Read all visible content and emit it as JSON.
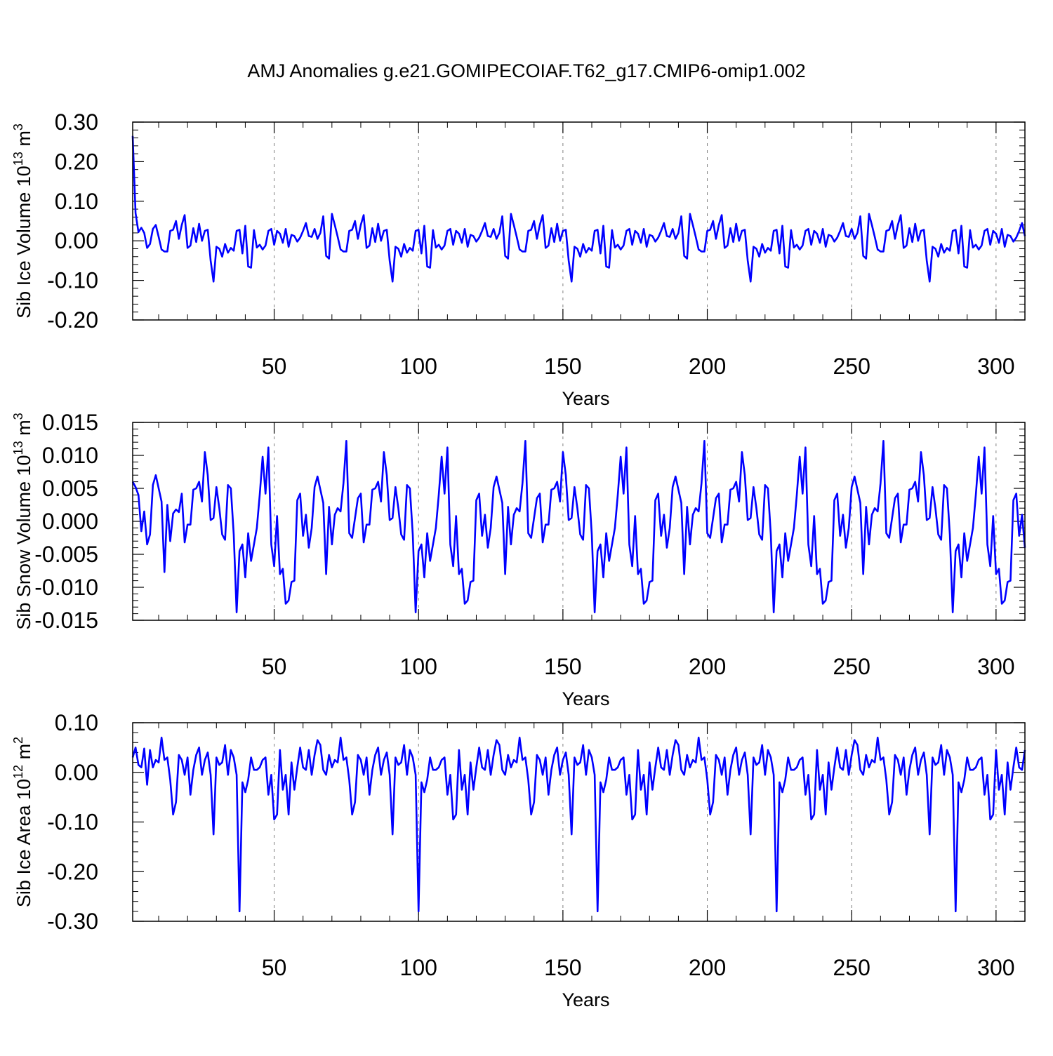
{
  "title": "AMJ Anomalies g.e21.GOMIPECOIAF.T62_g17.CMIP6-omip1.002",
  "line_color": "#0000ff",
  "chart_data": [
    {
      "type": "line",
      "id": "ice-volume",
      "ylabel_main": "Sib Ice Volume 10",
      "ylabel_sup": "13",
      "ylabel_unit": " m",
      "ylabel_unit_sup": "3",
      "xlabel": "Years",
      "xlim": [
        1,
        310
      ],
      "ylim": [
        -0.2,
        0.3
      ],
      "yticks": [
        -0.2,
        -0.1,
        0.0,
        0.1,
        0.2,
        0.3
      ],
      "ytick_labels": [
        "-0.20",
        "-0.10",
        "0.00",
        "0.10",
        "0.20",
        "0.30"
      ],
      "yminor_step": 0.02,
      "xticks": [
        50,
        100,
        150,
        200,
        250,
        300
      ],
      "xtick_labels": [
        "50",
        "100",
        "150",
        "200",
        "250",
        "300"
      ],
      "xminor_step": 10,
      "grid_x": true,
      "period": 62,
      "base_cycle": [
        0.027,
        -0.017,
        -0.01,
        -0.022,
        -0.012,
        0.025,
        0.03,
        -0.01,
        0.025,
        0.018,
        -0.005,
        0.03,
        -0.015,
        0.015,
        0.012,
        -0.002,
        0.008,
        0.025,
        0.045,
        0.012,
        0.01,
        0.03,
        0.005,
        0.02,
        0.062,
        -0.038,
        -0.045,
        0.068,
        0.04,
        0.01,
        -0.022,
        -0.027,
        -0.027,
        0.025,
        0.028,
        0.05,
        0.005,
        0.04,
        0.065,
        -0.018,
        -0.012,
        0.032,
        -0.003,
        0.043,
        0.0,
        0.025,
        0.028,
        -0.05,
        -0.103,
        -0.015,
        -0.02,
        -0.04,
        -0.008,
        -0.03,
        -0.018,
        -0.025,
        0.025,
        0.028,
        -0.032,
        0.038,
        -0.065,
        -0.068
      ],
      "first_values": [
        0.265,
        0.07,
        0.022,
        0.033,
        0.02,
        -0.018,
        -0.008,
        0.03
      ],
      "series": [
        {
          "name": "AMJ anomaly"
        }
      ]
    },
    {
      "type": "line",
      "id": "snow-volume",
      "ylabel_main": "Sib Snow Volume 10",
      "ylabel_sup": "13",
      "ylabel_unit": " m",
      "ylabel_unit_sup": "3",
      "xlabel": "Years",
      "xlim": [
        1,
        310
      ],
      "ylim": [
        -0.015,
        0.015
      ],
      "yticks": [
        -0.015,
        -0.01,
        -0.005,
        0.0,
        0.005,
        0.01,
        0.015
      ],
      "ytick_labels": [
        "-0.015",
        "-0.010",
        "-0.005",
        "0.000",
        "0.005",
        "0.010",
        "0.015"
      ],
      "yminor_step": 0.001,
      "xticks": [
        50,
        100,
        150,
        200,
        250,
        300
      ],
      "xtick_labels": [
        "50",
        "100",
        "150",
        "200",
        "250",
        "300"
      ],
      "xminor_step": 10,
      "grid_x": true,
      "period": 62,
      "base_cycle": [
        -0.0035,
        -0.001,
        0.004,
        0.0098,
        0.0042,
        0.0112,
        -0.0035,
        -0.0068,
        0.0008,
        -0.008,
        -0.0072,
        -0.0125,
        -0.012,
        -0.0092,
        -0.009,
        0.0032,
        0.0042,
        -0.0022,
        0.001,
        -0.004,
        -0.001,
        0.0052,
        0.0068,
        0.0048,
        0.0028,
        -0.008,
        0.0022,
        -0.0035,
        0.001,
        0.002,
        0.0015,
        0.0058,
        0.0122,
        -0.0018,
        -0.0025,
        0.0005,
        0.0035,
        0.0042,
        -0.0032,
        -0.0005,
        -0.0005,
        0.0048,
        0.005,
        0.006,
        0.003,
        0.0105,
        0.007,
        0.0002,
        0.0005,
        0.0052,
        0.002,
        -0.002,
        -0.0028,
        0.0055,
        0.005,
        -0.002,
        -0.0138,
        -0.0045,
        -0.0035,
        -0.0085,
        -0.0018,
        -0.006
      ],
      "first_values": [
        0.006,
        0.0052,
        0.004,
        -0.0015,
        0.0015,
        -0.0035,
        -0.002,
        0.0055,
        0.007,
        0.005,
        0.003,
        -0.0077,
        0.0025,
        -0.003,
        0.0012,
        0.0018,
        0.0014
      ],
      "series": [
        {
          "name": "AMJ anomaly"
        }
      ]
    },
    {
      "type": "line",
      "id": "ice-area",
      "ylabel_main": "Sib Ice Area 10",
      "ylabel_sup": "12",
      "ylabel_unit": " m",
      "ylabel_unit_sup": "2",
      "xlabel": "Years",
      "xlim": [
        1,
        310
      ],
      "ylim": [
        -0.3,
        0.1
      ],
      "yticks": [
        -0.3,
        -0.2,
        -0.1,
        0.0,
        0.1
      ],
      "ytick_labels": [
        "-0.30",
        "-0.20",
        "-0.10",
        "0.00",
        "0.10"
      ],
      "yminor_step": 0.02,
      "xticks": [
        50,
        100,
        150,
        200,
        250,
        300
      ],
      "xtick_labels": [
        "50",
        "100",
        "150",
        "200",
        "250",
        "300"
      ],
      "xminor_step": 10,
      "grid_x": true,
      "period": 62,
      "base_cycle": [
        0.005,
        0.005,
        0.01,
        0.025,
        0.03,
        -0.045,
        -0.005,
        -0.095,
        -0.085,
        0.045,
        -0.035,
        -0.005,
        -0.085,
        0.02,
        -0.035,
        0.01,
        0.05,
        0.01,
        0.005,
        0.045,
        -0.005,
        0.035,
        0.065,
        0.055,
        0.005,
        -0.005,
        0.035,
        0.01,
        0.025,
        0.02,
        0.07,
        0.025,
        0.03,
        -0.015,
        -0.085,
        -0.06,
        0.035,
        0.025,
        -0.005,
        0.03,
        -0.045,
        0.005,
        0.035,
        0.05,
        -0.005,
        0.025,
        0.04,
        -0.005,
        -0.125,
        0.03,
        0.015,
        0.02,
        0.055,
        -0.005,
        0.045,
        0.03,
        -0.005,
        -0.28,
        -0.02,
        -0.04,
        -0.015,
        0.03
      ],
      "first_values": [
        0.03,
        0.05,
        0.015,
        0.01,
        0.048,
        -0.025,
        0.045
      ],
      "series": [
        {
          "name": "AMJ anomaly"
        }
      ]
    }
  ]
}
